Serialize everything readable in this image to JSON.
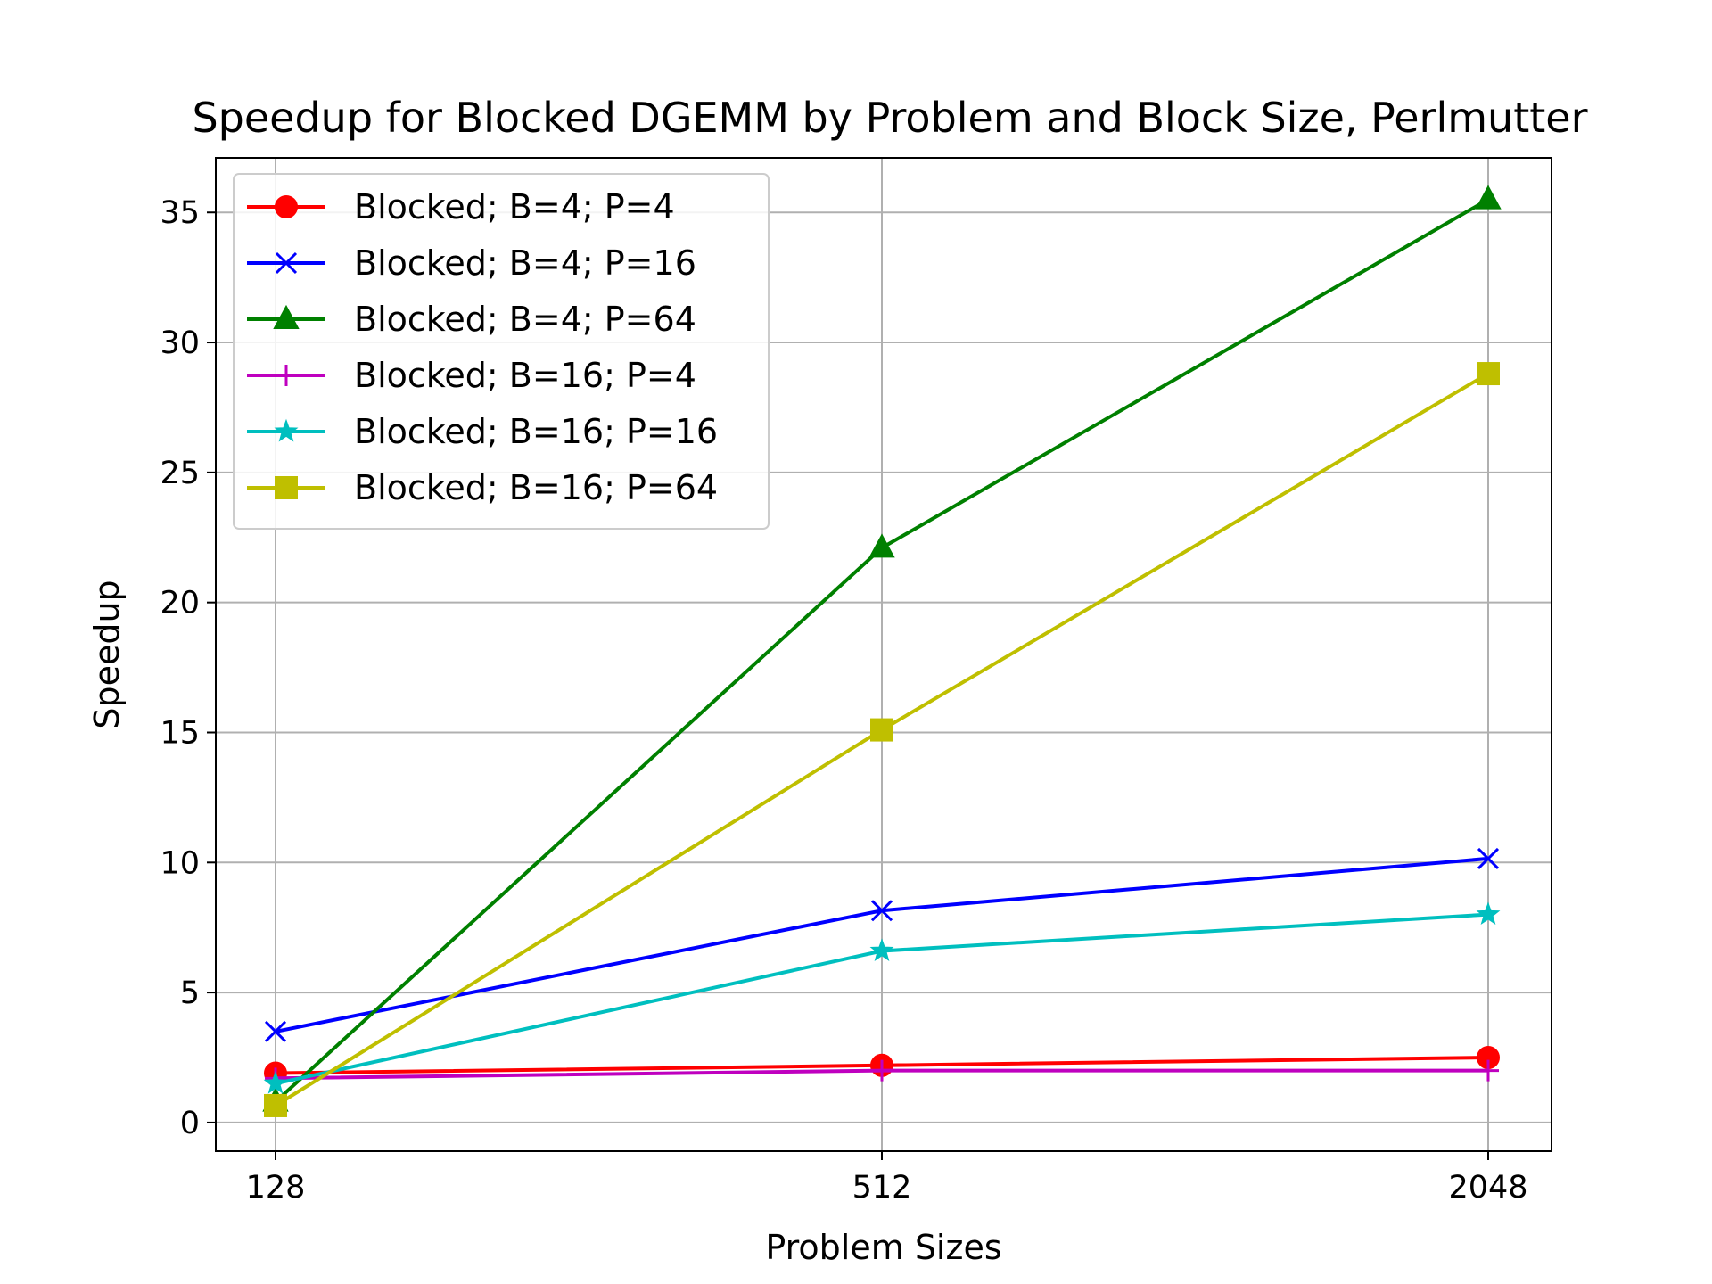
{
  "chart_data": {
    "type": "line",
    "title": "Speedup for Blocked DGEMM by Problem and Block Size, Perlmutter",
    "xlabel": "Problem Sizes",
    "ylabel": "Speedup",
    "categories": [
      "128",
      "512",
      "2048"
    ],
    "ylim": [
      -1.1,
      37.1
    ],
    "yticks": [
      0,
      5,
      10,
      15,
      20,
      25,
      30,
      35
    ],
    "grid": true,
    "legend_position": "top-left",
    "series": [
      {
        "name": "Blocked; B=4; P=4",
        "color": "#ff0000",
        "marker": "circle",
        "values": [
          1.9,
          2.2,
          2.5
        ]
      },
      {
        "name": "Blocked; B=4; P=16",
        "color": "#0000ff",
        "marker": "x",
        "values": [
          3.5,
          8.15,
          10.15
        ]
      },
      {
        "name": "Blocked; B=4; P=64",
        "color": "#008000",
        "marker": "triangle",
        "values": [
          0.8,
          22.1,
          35.5
        ]
      },
      {
        "name": "Blocked; B=16; P=4",
        "color": "#bf00bf",
        "marker": "plus",
        "values": [
          1.7,
          2.0,
          2.0
        ]
      },
      {
        "name": "Blocked; B=16; P=16",
        "color": "#00bfbf",
        "marker": "star",
        "values": [
          1.5,
          6.6,
          8.0
        ]
      },
      {
        "name": "Blocked; B=16; P=64",
        "color": "#bfbf00",
        "marker": "square",
        "values": [
          0.65,
          15.1,
          28.8
        ]
      }
    ]
  }
}
